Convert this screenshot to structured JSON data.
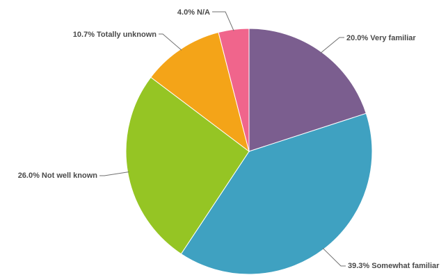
{
  "chart_data": {
    "type": "pie",
    "start_angle_deg": 0,
    "direction": "clockwise",
    "slices": [
      {
        "label": "20.0% Very familiar",
        "value": 20.0,
        "color": "#7b5e8f"
      },
      {
        "label": "39.3% Somewhat familiar",
        "value": 39.3,
        "color": "#3fa1c1"
      },
      {
        "label": "26.0% Not well known",
        "value": 26.0,
        "color": "#95c524"
      },
      {
        "label": "10.7% Totally unknown",
        "value": 10.7,
        "color": "#f4a418"
      },
      {
        "label": "4.0% N/A",
        "value": 4.0,
        "color": "#f0658c"
      }
    ]
  }
}
